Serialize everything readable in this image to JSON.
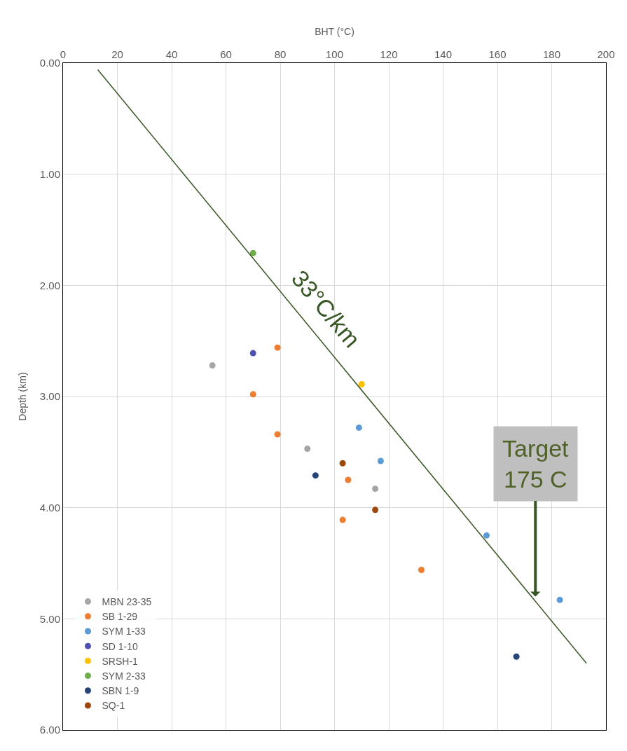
{
  "chart_data": {
    "type": "scatter",
    "xlabel": "BHT (°C)",
    "ylabel": "Depth (km)",
    "xlim": [
      0,
      200
    ],
    "xticks": [
      0,
      20,
      40,
      60,
      80,
      100,
      120,
      140,
      160,
      180,
      200
    ],
    "ylim": [
      6,
      0
    ],
    "yticks": [
      {
        "value": 0,
        "label": "0.00"
      },
      {
        "value": 1,
        "label": "1.00"
      },
      {
        "value": 2,
        "label": "2.00"
      },
      {
        "value": 3,
        "label": "3.00"
      },
      {
        "value": 4,
        "label": "4.00"
      },
      {
        "value": 5,
        "label": "5.00"
      },
      {
        "value": 6,
        "label": "6.00"
      }
    ],
    "grid": true,
    "legend": "bottom left",
    "marker": "circle",
    "series": [
      {
        "name": "MBN 23-35",
        "color": "#a5a5a5",
        "x": [
          55,
          90,
          115
        ],
        "values": [
          2.72,
          3.47,
          3.83
        ]
      },
      {
        "name": "SB 1-29",
        "color": "#ed7d31",
        "x": [
          79,
          70,
          79,
          105,
          103,
          132
        ],
        "values": [
          2.56,
          2.98,
          3.34,
          3.75,
          4.11,
          4.56
        ]
      },
      {
        "name": "SYM 1-33",
        "color": "#5b9bd5",
        "x": [
          109,
          117,
          156,
          183
        ],
        "values": [
          3.28,
          3.58,
          4.25,
          4.83
        ]
      },
      {
        "name": "SD 1-10",
        "color": "#5050b0",
        "x": [
          70
        ],
        "values": [
          2.61
        ]
      },
      {
        "name": "SRSH-1",
        "color": "#ffc000",
        "x": [
          110
        ],
        "values": [
          2.89
        ]
      },
      {
        "name": "SYM 2-33",
        "color": "#70ad47",
        "x": [
          70
        ],
        "values": [
          1.71
        ]
      },
      {
        "name": "SBN 1-9",
        "color": "#264478",
        "x": [
          93,
          167
        ],
        "values": [
          3.71,
          5.34
        ]
      },
      {
        "name": "SQ-1",
        "color": "#9e480e",
        "x": [
          103,
          115
        ],
        "values": [
          3.6,
          4.02
        ]
      },
      {
        "type": "line",
        "marker": "none",
        "color": "#375623",
        "x": [
          12.8,
          192.8
        ],
        "values": [
          0.06,
          5.4
        ]
      }
    ],
    "annotations": [
      "33°C/km",
      {
        "text": "Target\n175 C",
        "x": 174,
        "y": 4.8
      }
    ]
  }
}
